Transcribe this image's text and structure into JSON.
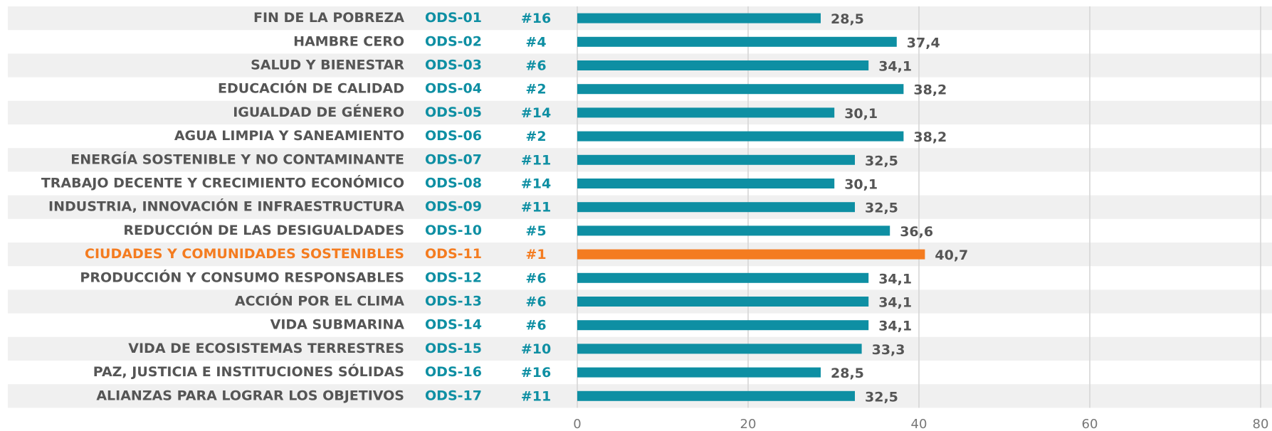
{
  "chart_data": {
    "type": "bar",
    "orientation": "horizontal",
    "categories": [
      "FIN DE LA POBREZA",
      "HAMBRE CERO",
      "SALUD Y BIENESTAR",
      "EDUCACIÓN DE CALIDAD",
      "IGUALDAD DE GÉNERO",
      "AGUA LIMPIA Y SANEAMIENTO",
      "ENERGÍA SOSTENIBLE Y NO CONTAMINANTE",
      "TRABAJO DECENTE Y CRECIMIENTO ECONÓMICO",
      "INDUSTRIA, INNOVACIÓN E INFRAESTRUCTURA",
      "REDUCCIÓN DE LAS DESIGUALDADES",
      "CIUDADES Y COMUNIDADES SOSTENIBLES",
      "PRODUCCIÓN Y CONSUMO RESPONSABLES",
      "ACCIÓN POR EL CLIMA",
      "VIDA SUBMARINA",
      "VIDA DE ECOSISTEMAS TERRESTRES",
      "PAZ, JUSTICIA E INSTITUCIONES SÓLIDAS",
      "ALIANZAS PARA LOGRAR LOS OBJETIVOS"
    ],
    "codes": [
      "ODS-01",
      "ODS-02",
      "ODS-03",
      "ODS-04",
      "ODS-05",
      "ODS-06",
      "ODS-07",
      "ODS-08",
      "ODS-09",
      "ODS-10",
      "ODS-11",
      "ODS-12",
      "ODS-13",
      "ODS-14",
      "ODS-15",
      "ODS-16",
      "ODS-17"
    ],
    "ranks": [
      "#16",
      "#4",
      "#6",
      "#2",
      "#14",
      "#2",
      "#11",
      "#14",
      "#11",
      "#5",
      "#1",
      "#6",
      "#6",
      "#6",
      "#10",
      "#16",
      "#11"
    ],
    "values": [
      28.5,
      37.4,
      34.1,
      38.2,
      30.1,
      38.2,
      32.5,
      30.1,
      32.5,
      36.6,
      40.7,
      34.1,
      34.1,
      34.1,
      33.3,
      28.5,
      32.5
    ],
    "value_labels": [
      "28,5",
      "37,4",
      "34,1",
      "38,2",
      "30,1",
      "38,2",
      "32,5",
      "30,1",
      "32,5",
      "36,6",
      "40,7",
      "34,1",
      "34,1",
      "34,1",
      "33,3",
      "28,5",
      "32,5"
    ],
    "color": "#0e8fa3",
    "colors": [
      "#0e8fa3",
      "#0e8fa3",
      "#0e8fa3",
      "#0e8fa3",
      "#0e8fa3",
      "#0e8fa3",
      "#0e8fa3",
      "#0e8fa3",
      "#0e8fa3",
      "#0e8fa3",
      "#f47c20",
      "#0e8fa3",
      "#0e8fa3",
      "#0e8fa3",
      "#0e8fa3",
      "#0e8fa3",
      "#0e8fa3"
    ],
    "xlim": [
      0,
      80
    ],
    "xticks": [
      0,
      20,
      40,
      60,
      80
    ],
    "grid": true
  }
}
